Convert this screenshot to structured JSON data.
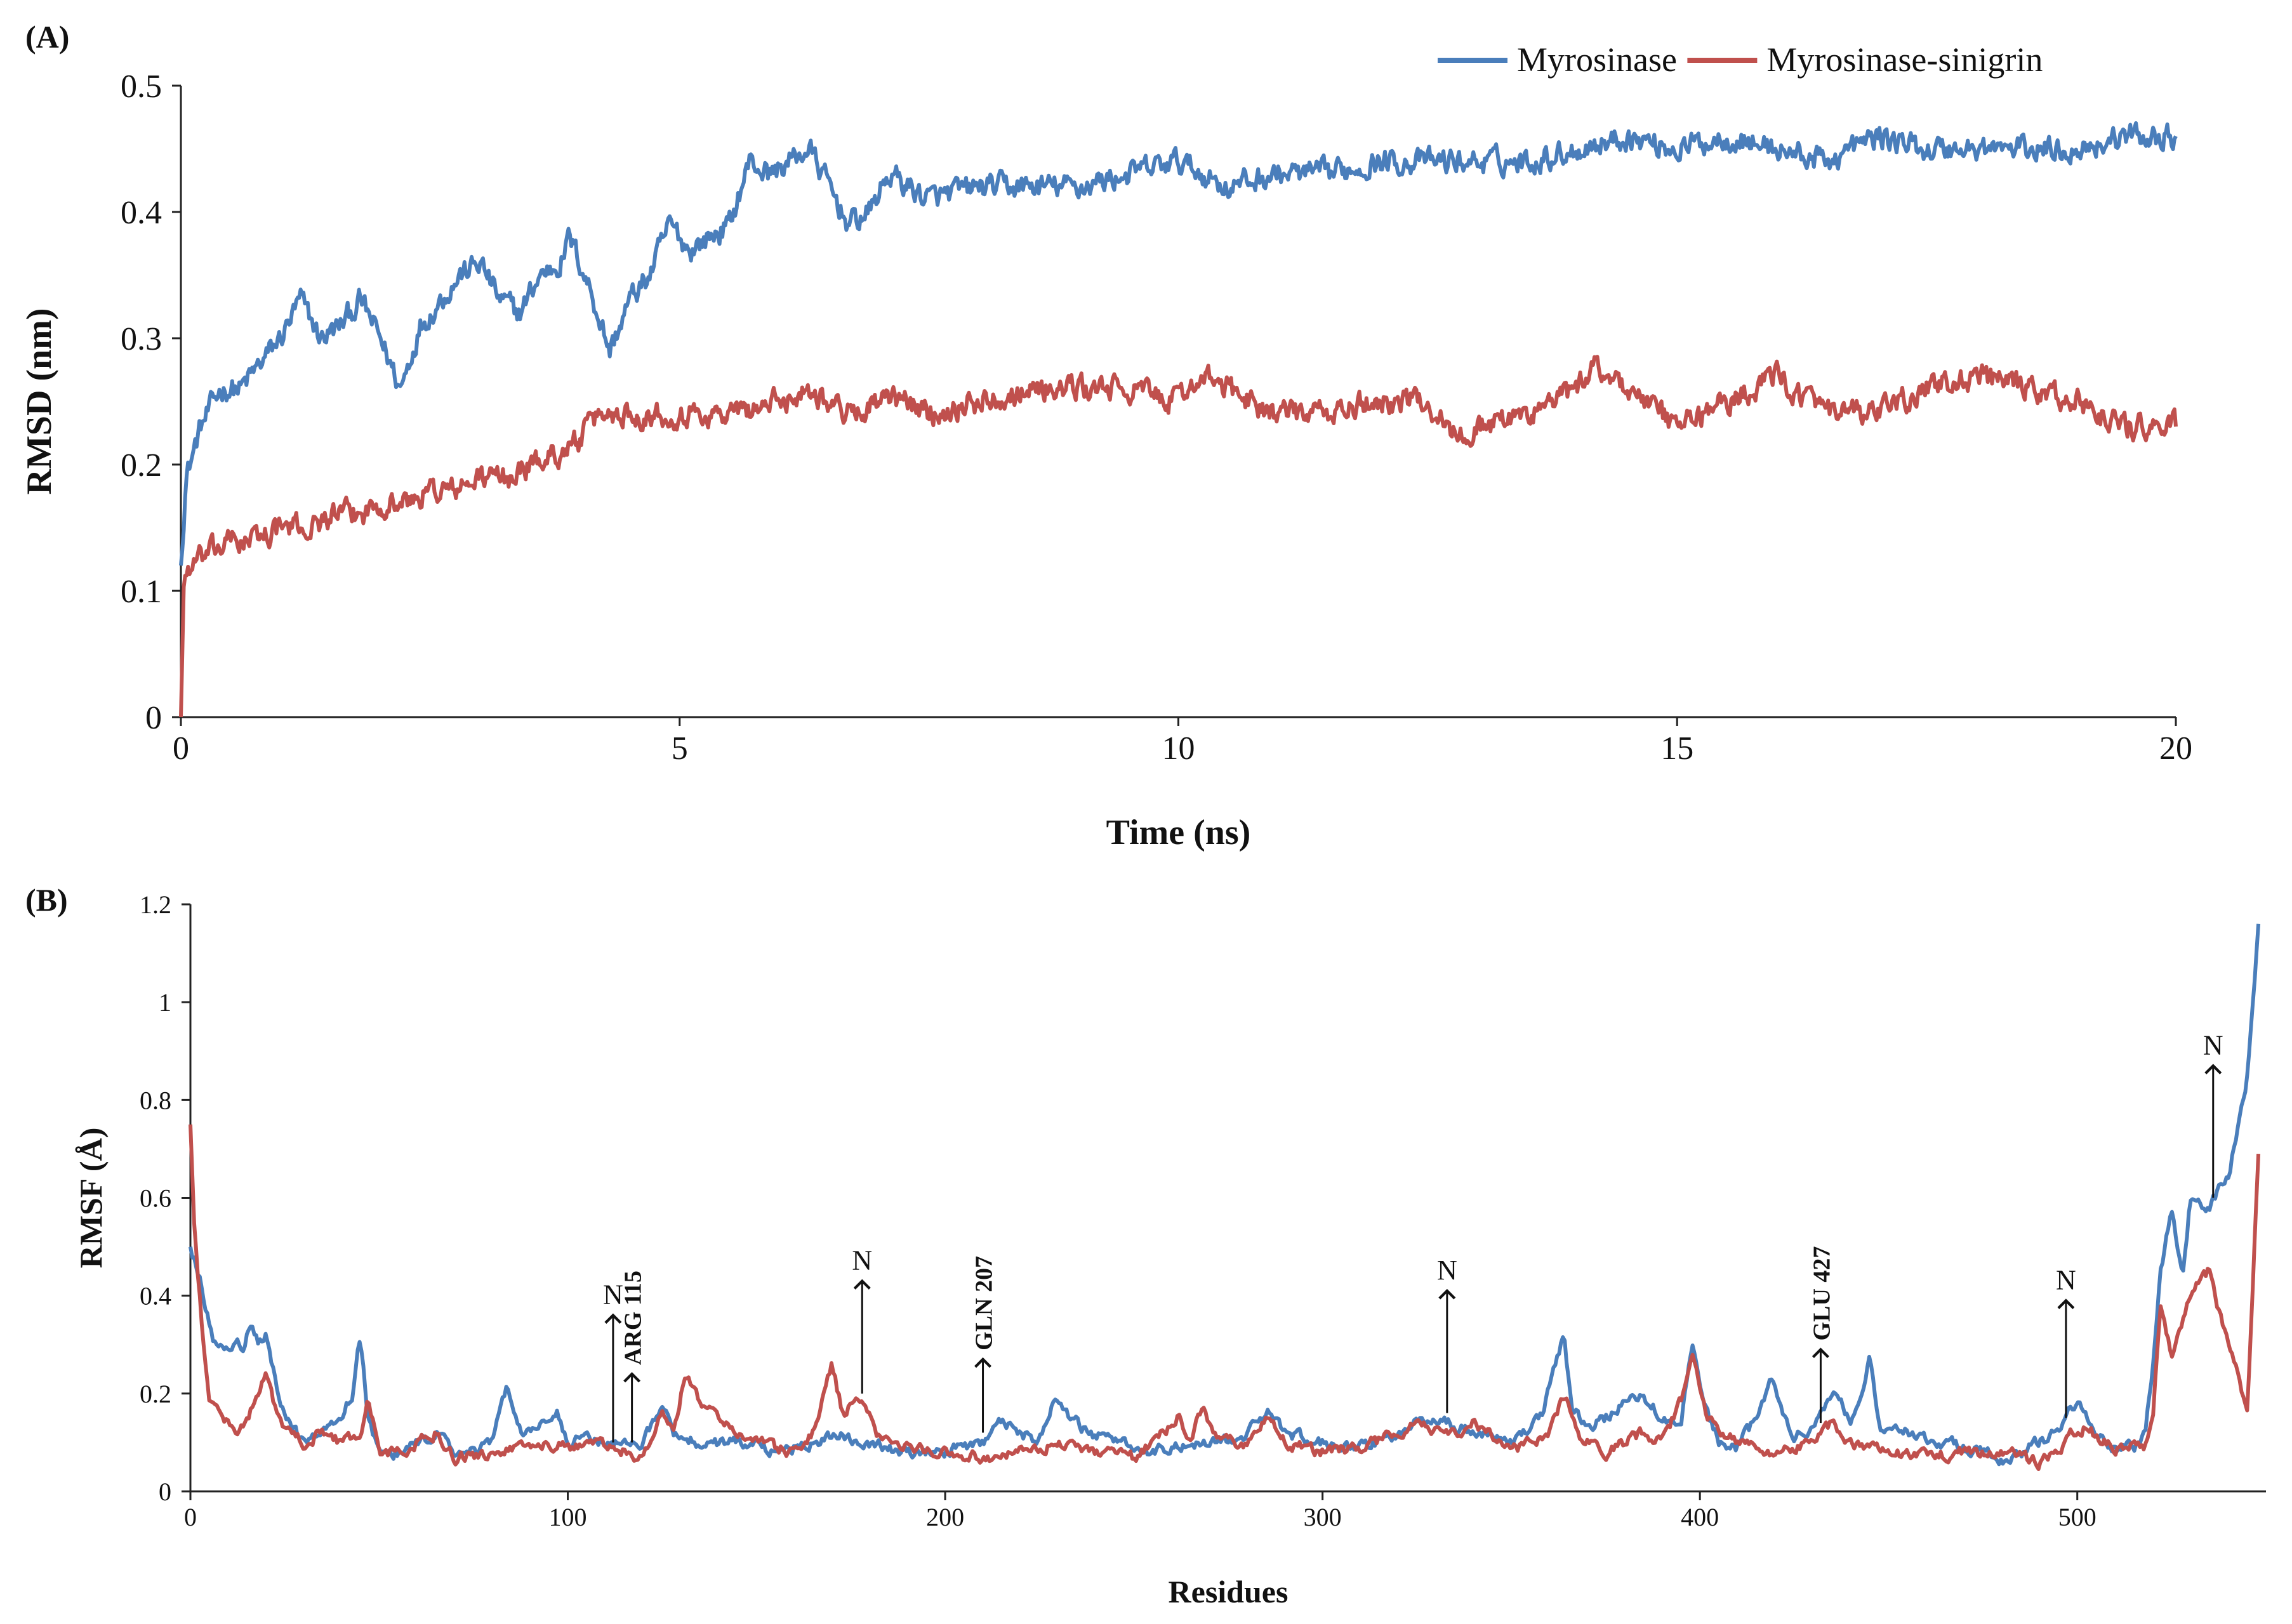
{
  "chart_data": [
    {
      "panel_label": "(A)",
      "type": "line",
      "title": "",
      "xlabel": "Time (ns)",
      "ylabel": "RMSD (nm)",
      "xlim": [
        0,
        20
      ],
      "ylim": [
        0,
        0.5
      ],
      "x_ticks": [
        0,
        5,
        10,
        15,
        20
      ],
      "y_ticks": [
        0,
        0.1,
        0.2,
        0.3,
        0.4,
        0.5
      ],
      "x_tick_labels": [
        "0",
        "5",
        "10",
        "15",
        "20"
      ],
      "y_tick_labels": [
        "0",
        "0.1",
        "0.2",
        "0.3",
        "0.4",
        "0.5"
      ],
      "grid": false,
      "legend_position": "top-right",
      "noise_amplitude": 0.008,
      "series": [
        {
          "name": "Myrosinase",
          "color": "#4a7ebb",
          "x": [
            0,
            0.05,
            0.2,
            0.4,
            0.6,
            0.8,
            1.0,
            1.2,
            1.4,
            1.6,
            1.8,
            2.0,
            2.2,
            2.4,
            2.6,
            2.8,
            3.0,
            3.2,
            3.4,
            3.6,
            3.8,
            3.9,
            4.1,
            4.3,
            4.5,
            4.7,
            4.9,
            5.1,
            5.3,
            5.5,
            5.7,
            5.9,
            6.1,
            6.3,
            6.5,
            6.7,
            6.9,
            7.1,
            7.3,
            7.5,
            8.0,
            8.5,
            9.0,
            9.5,
            10.0,
            10.5,
            11.0,
            11.5,
            12.0,
            12.5,
            13.0,
            13.5,
            14.0,
            14.5,
            15.0,
            15.5,
            16.0,
            16.5,
            17.0,
            17.5,
            18.0,
            18.5,
            19.0,
            19.5,
            20.0
          ],
          "y": [
            0.12,
            0.19,
            0.23,
            0.26,
            0.26,
            0.28,
            0.3,
            0.33,
            0.3,
            0.31,
            0.33,
            0.3,
            0.26,
            0.31,
            0.33,
            0.35,
            0.36,
            0.33,
            0.32,
            0.35,
            0.36,
            0.38,
            0.34,
            0.29,
            0.33,
            0.35,
            0.39,
            0.37,
            0.38,
            0.39,
            0.44,
            0.43,
            0.44,
            0.45,
            0.42,
            0.39,
            0.4,
            0.43,
            0.42,
            0.41,
            0.42,
            0.42,
            0.42,
            0.43,
            0.44,
            0.42,
            0.43,
            0.43,
            0.44,
            0.44,
            0.44,
            0.44,
            0.45,
            0.46,
            0.45,
            0.46,
            0.45,
            0.44,
            0.46,
            0.45,
            0.45,
            0.45,
            0.45,
            0.46,
            0.46
          ]
        },
        {
          "name": "Myrosinase-sinigrin",
          "color": "#c0504d",
          "x": [
            0,
            0.03,
            0.1,
            0.3,
            0.5,
            0.7,
            1.0,
            1.3,
            1.5,
            1.8,
            2.0,
            2.3,
            2.5,
            2.8,
            3.0,
            3.3,
            3.5,
            3.8,
            4.0,
            4.2,
            4.5,
            5.0,
            5.5,
            6.0,
            6.3,
            6.7,
            7.0,
            7.3,
            7.5,
            8.0,
            8.5,
            9.0,
            9.5,
            10.0,
            10.2,
            10.5,
            11.0,
            11.5,
            12.0,
            12.5,
            12.8,
            13.0,
            13.5,
            14.0,
            14.2,
            14.5,
            15.0,
            15.5,
            16.0,
            16.5,
            17.0,
            17.5,
            18.0,
            18.5,
            19.0,
            19.5,
            20.0
          ],
          "y": [
            0.0,
            0.11,
            0.12,
            0.13,
            0.14,
            0.14,
            0.15,
            0.15,
            0.16,
            0.16,
            0.17,
            0.17,
            0.18,
            0.18,
            0.19,
            0.19,
            0.2,
            0.21,
            0.22,
            0.24,
            0.24,
            0.24,
            0.24,
            0.25,
            0.26,
            0.24,
            0.25,
            0.25,
            0.24,
            0.25,
            0.26,
            0.26,
            0.26,
            0.25,
            0.27,
            0.26,
            0.24,
            0.24,
            0.25,
            0.25,
            0.22,
            0.23,
            0.24,
            0.26,
            0.28,
            0.26,
            0.23,
            0.25,
            0.27,
            0.24,
            0.24,
            0.26,
            0.27,
            0.26,
            0.25,
            0.23,
            0.23
          ]
        }
      ]
    },
    {
      "panel_label": "(B)",
      "type": "line",
      "title": "",
      "xlabel": "Residues",
      "ylabel": "RMSF (Å)",
      "xlim": [
        0,
        550
      ],
      "ylim": [
        0,
        1.2
      ],
      "x_ticks": [
        0,
        100,
        200,
        300,
        400,
        500
      ],
      "y_ticks": [
        0,
        0.2,
        0.4,
        0.6,
        0.8,
        1.0,
        1.2
      ],
      "x_tick_labels": [
        "0",
        "100",
        "200",
        "300",
        "400",
        "500"
      ],
      "y_tick_labels": [
        "0",
        "0.2",
        "0.4",
        "0.6",
        "0.8",
        "1",
        "1.2"
      ],
      "grid": false,
      "noise_amplitude": 0.01,
      "series": [
        {
          "name": "Myrosinase",
          "color": "#4a7ebb",
          "x": [
            0,
            3,
            6,
            8,
            10,
            12,
            14,
            16,
            18,
            20,
            22,
            25,
            30,
            35,
            40,
            43,
            45,
            47,
            50,
            55,
            60,
            65,
            70,
            75,
            80,
            84,
            88,
            92,
            97,
            100,
            105,
            110,
            115,
            120,
            125,
            128,
            130,
            135,
            140,
            145,
            150,
            155,
            160,
            165,
            170,
            173,
            175,
            180,
            185,
            190,
            200,
            205,
            210,
            215,
            220,
            225,
            229,
            233,
            238,
            245,
            255,
            265,
            275,
            280,
            285,
            290,
            300,
            310,
            320,
            325,
            330,
            340,
            350,
            358,
            362,
            364,
            366,
            370,
            375,
            380,
            385,
            390,
            395,
            398,
            400,
            405,
            410,
            415,
            419,
            422,
            425,
            430,
            435,
            440,
            443,
            445,
            448,
            455,
            465,
            475,
            480,
            485,
            490,
            495,
            498,
            500,
            505,
            510,
            515,
            518,
            520,
            522,
            525,
            528,
            530,
            535,
            540,
            543,
            545,
            548
          ],
          "y": [
            0.5,
            0.42,
            0.3,
            0.3,
            0.28,
            0.3,
            0.3,
            0.34,
            0.3,
            0.32,
            0.25,
            0.15,
            0.1,
            0.12,
            0.15,
            0.2,
            0.32,
            0.15,
            0.08,
            0.08,
            0.1,
            0.12,
            0.08,
            0.08,
            0.1,
            0.22,
            0.12,
            0.12,
            0.17,
            0.1,
            0.11,
            0.1,
            0.1,
            0.1,
            0.18,
            0.12,
            0.11,
            0.1,
            0.1,
            0.1,
            0.1,
            0.08,
            0.09,
            0.1,
            0.11,
            0.12,
            0.11,
            0.1,
            0.09,
            0.08,
            0.08,
            0.09,
            0.1,
            0.14,
            0.12,
            0.1,
            0.2,
            0.15,
            0.12,
            0.1,
            0.08,
            0.1,
            0.1,
            0.11,
            0.17,
            0.12,
            0.1,
            0.09,
            0.12,
            0.15,
            0.15,
            0.12,
            0.1,
            0.15,
            0.26,
            0.32,
            0.18,
            0.13,
            0.15,
            0.18,
            0.2,
            0.15,
            0.15,
            0.3,
            0.2,
            0.1,
            0.09,
            0.15,
            0.23,
            0.15,
            0.12,
            0.13,
            0.2,
            0.15,
            0.2,
            0.27,
            0.12,
            0.12,
            0.1,
            0.08,
            0.06,
            0.08,
            0.1,
            0.12,
            0.17,
            0.18,
            0.12,
            0.09,
            0.09,
            0.12,
            0.25,
            0.45,
            0.57,
            0.45,
            0.6,
            0.58,
            0.65,
            0.76,
            0.85,
            1.16
          ]
        },
        {
          "name": "Myrosinase-sinigrin",
          "color": "#c0504d",
          "x": [
            0,
            1,
            3,
            5,
            8,
            12,
            15,
            18,
            20,
            22,
            25,
            30,
            35,
            40,
            45,
            47,
            50,
            55,
            60,
            65,
            70,
            80,
            90,
            100,
            110,
            115,
            118,
            122,
            125,
            128,
            131,
            135,
            140,
            145,
            150,
            160,
            165,
            168,
            170,
            173,
            176,
            179,
            183,
            190,
            200,
            210,
            220,
            230,
            240,
            250,
            258,
            262,
            265,
            268,
            272,
            280,
            285,
            290,
            300,
            310,
            320,
            325,
            330,
            335,
            340,
            350,
            360,
            364,
            368,
            375,
            385,
            390,
            396,
            398,
            402,
            410,
            420,
            430,
            435,
            440,
            450,
            460,
            470,
            480,
            490,
            495,
            498,
            502,
            510,
            518,
            520,
            522,
            525,
            528,
            530,
            535,
            538,
            542,
            545,
            548
          ],
          "y": [
            0.75,
            0.55,
            0.35,
            0.2,
            0.15,
            0.12,
            0.15,
            0.2,
            0.24,
            0.18,
            0.12,
            0.1,
            0.12,
            0.1,
            0.12,
            0.2,
            0.08,
            0.08,
            0.1,
            0.12,
            0.07,
            0.08,
            0.1,
            0.09,
            0.09,
            0.08,
            0.07,
            0.1,
            0.17,
            0.12,
            0.24,
            0.18,
            0.15,
            0.12,
            0.1,
            0.08,
            0.12,
            0.2,
            0.26,
            0.15,
            0.2,
            0.17,
            0.1,
            0.09,
            0.08,
            0.07,
            0.08,
            0.1,
            0.08,
            0.07,
            0.12,
            0.16,
            0.1,
            0.17,
            0.12,
            0.09,
            0.15,
            0.1,
            0.08,
            0.09,
            0.12,
            0.14,
            0.12,
            0.12,
            0.14,
            0.08,
            0.12,
            0.2,
            0.12,
            0.08,
            0.12,
            0.1,
            0.2,
            0.29,
            0.15,
            0.1,
            0.08,
            0.1,
            0.14,
            0.1,
            0.08,
            0.07,
            0.08,
            0.08,
            0.06,
            0.08,
            0.12,
            0.13,
            0.09,
            0.09,
            0.15,
            0.37,
            0.28,
            0.35,
            0.4,
            0.45,
            0.35,
            0.25,
            0.15,
            0.69
          ]
        }
      ],
      "annotations": [
        {
          "text": "N",
          "x": 112,
          "y_tip": 0.36,
          "y_base": 0.1
        },
        {
          "text": "ARG 115",
          "x": 117,
          "y_tip": 0.24,
          "y_base": 0.1
        },
        {
          "text": "N",
          "x": 178,
          "y_tip": 0.43,
          "y_base": 0.2
        },
        {
          "text": "GLN 207",
          "x": 210,
          "y_tip": 0.27,
          "y_base": 0.12
        },
        {
          "text": "N",
          "x": 333,
          "y_tip": 0.41,
          "y_base": 0.16
        },
        {
          "text": "GLU 427",
          "x": 432,
          "y_tip": 0.29,
          "y_base": 0.14
        },
        {
          "text": "N",
          "x": 497,
          "y_tip": 0.39,
          "y_base": 0.15
        },
        {
          "text": "N",
          "x": 536,
          "y_tip": 0.87,
          "y_base": 0.6
        }
      ]
    }
  ]
}
